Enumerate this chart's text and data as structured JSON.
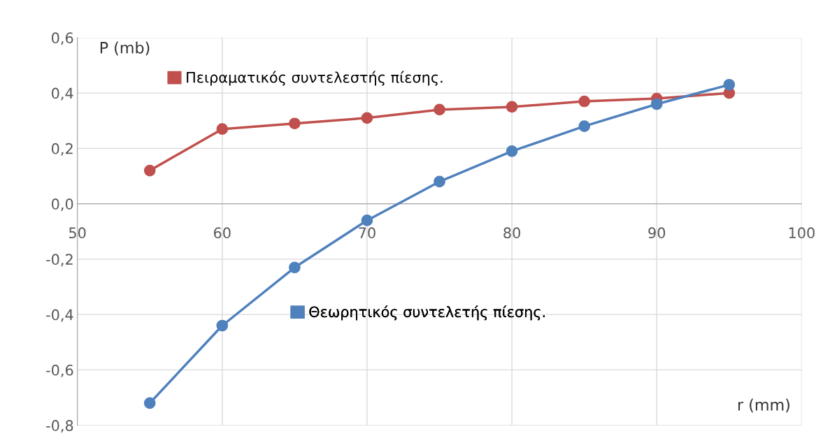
{
  "chart_data": {
    "type": "line",
    "xlabel": "r (mm)",
    "ylabel": "P (mb)",
    "x": [
      55,
      60,
      65,
      70,
      75,
      80,
      85,
      90,
      95
    ],
    "series": [
      {
        "name": "Πειραματικός συντελεστής πίεσης.",
        "color": "#c0504d",
        "values": [
          0.12,
          0.27,
          0.29,
          0.31,
          0.34,
          0.35,
          0.37,
          0.38,
          0.4
        ]
      },
      {
        "name": "Θεωρητικός συντελετής πίεσης.",
        "color": "#4f81bd",
        "values": [
          -0.72,
          -0.44,
          -0.23,
          -0.06,
          0.08,
          0.19,
          0.28,
          0.36,
          0.43
        ]
      }
    ],
    "xlim": [
      50,
      100
    ],
    "xticks": [
      50,
      60,
      70,
      80,
      90,
      100
    ],
    "ylim": [
      -0.8,
      0.6
    ],
    "yticks": [
      {
        "value": -0.8,
        "label": "-0,8"
      },
      {
        "value": -0.6,
        "label": "-0,6"
      },
      {
        "value": -0.4,
        "label": "-0,4"
      },
      {
        "value": -0.2,
        "label": "-0,2"
      },
      {
        "value": 0,
        "label": "0,0"
      },
      {
        "value": 0.2,
        "label": "0,2"
      },
      {
        "value": 0.4,
        "label": "0,4"
      },
      {
        "value": 0.6,
        "label": "0,6"
      }
    ],
    "grid": true,
    "legend": "top left",
    "marker": "circle",
    "line_style": "solid"
  }
}
